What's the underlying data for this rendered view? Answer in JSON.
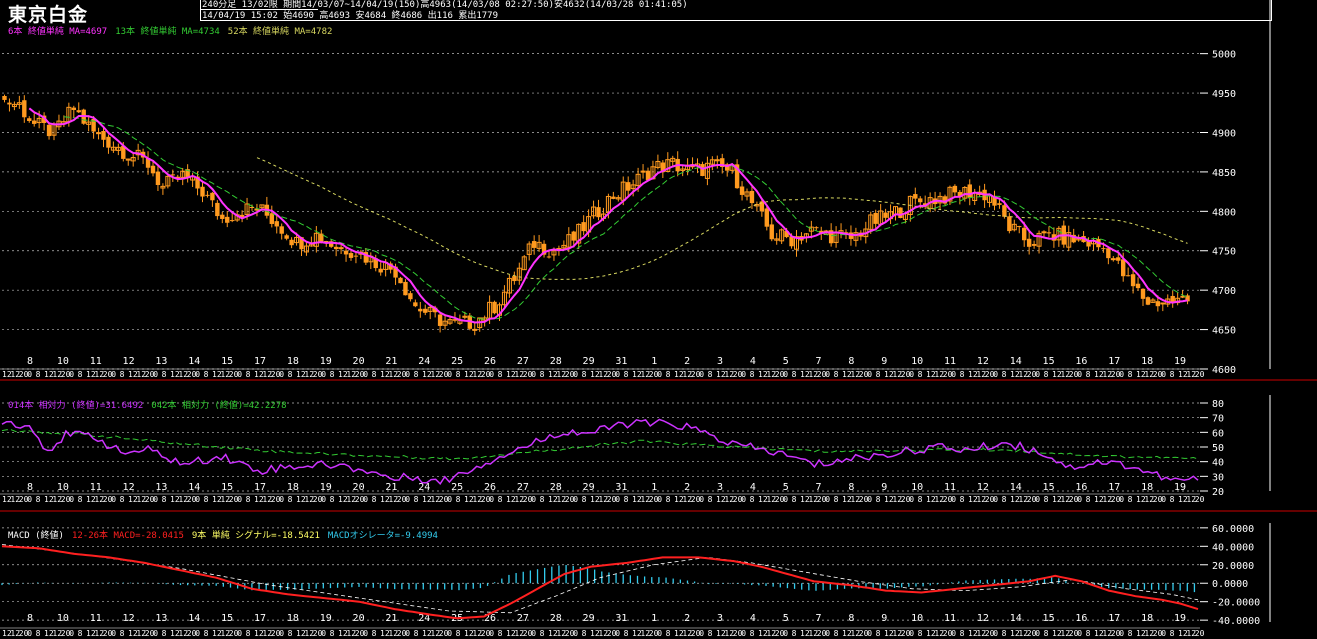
{
  "header": {
    "title": "東京白金",
    "line1": "240分足  13/02限  期間14/03/07~14/04/19(150)高4963(14/03/08 02:27:50)安4632(14/03/28 01:41:05)",
    "line2": "14/04/19 15:02 始4690 高4693 安4684 終4686 出116 累出1779"
  },
  "colors": {
    "up": "#ff9a1f",
    "ma_short": "#ff33ff",
    "ma_mid": "#33cc33",
    "ma_long": "#d8d860",
    "rsi_short": "#cc33ff",
    "rsi_long": "#33cc33",
    "macd": "#ff2020",
    "signal": "#ffffff",
    "osc": "#33ccee",
    "grid": "#bbbbbb",
    "separator": "#cc0000"
  },
  "x_axis": {
    "day_labels": [
      "8",
      "10",
      "11",
      "12",
      "13",
      "14",
      "15",
      "17",
      "18",
      "19",
      "20",
      "21",
      "24",
      "25",
      "26",
      "27",
      "28",
      "29",
      "31",
      "1",
      "2",
      "3",
      "4",
      "5",
      "7",
      "8",
      "9",
      "10",
      "11",
      "12",
      "14",
      "15",
      "16",
      "17",
      "18",
      "19"
    ],
    "hour_pattern": [
      "12",
      "12",
      "20",
      "0",
      "8"
    ]
  },
  "price_panel": {
    "legend": [
      {
        "text": "6本 終値単純 MA=4697",
        "color": "#ff33ff"
      },
      {
        "text": "13本 終値単純 MA=4734",
        "color": "#33cc33"
      },
      {
        "text": "52本 終値単純 MA=4782",
        "color": "#d8d860"
      }
    ],
    "y_ticks": [
      "5000",
      "4950",
      "4900",
      "4850",
      "4800",
      "4750",
      "4700",
      "4650",
      "4600"
    ],
    "ylim": [
      4600,
      5030
    ]
  },
  "rsi_panel": {
    "legend": [
      {
        "text": "014本 相対力 (終値)=31.6492",
        "color": "#cc33ff"
      },
      {
        "text": "042本 相対力 (終値)=42.2278",
        "color": "#33cc33"
      }
    ],
    "y_ticks": [
      "80",
      "70",
      "60",
      "50",
      "40",
      "30",
      "20"
    ],
    "ylim": [
      20,
      80
    ]
  },
  "macd_panel": {
    "legend": [
      {
        "text": "MACD (終値)",
        "color": "#ffffff"
      },
      {
        "text": "12-26本 MACD=-28.0415",
        "color": "#ff2020"
      },
      {
        "text": "9本 単純 シグナル=-18.5421",
        "color": "#ffff66"
      },
      {
        "text": "MACDオシレータ=-9.4994",
        "color": "#33ccee"
      }
    ],
    "y_ticks": [
      "60.0000",
      "40.0000",
      "20.0000",
      "0.0000",
      "-20.0000",
      "-40.0000"
    ],
    "ylim": [
      -42,
      62
    ]
  },
  "chart_data": [
    {
      "type": "candlestick",
      "title": "東京白金",
      "y_range": [
        4600,
        5030
      ],
      "close_anchors": [
        [
          0,
          4940
        ],
        [
          3,
          4935
        ],
        [
          6,
          4910
        ],
        [
          10,
          4900
        ],
        [
          14,
          4930
        ],
        [
          18,
          4900
        ],
        [
          22,
          4885
        ],
        [
          26,
          4870
        ],
        [
          29,
          4860
        ],
        [
          32,
          4830
        ],
        [
          36,
          4845
        ],
        [
          40,
          4825
        ],
        [
          44,
          4790
        ],
        [
          47,
          4800
        ],
        [
          51,
          4805
        ],
        [
          55,
          4785
        ],
        [
          59,
          4760
        ],
        [
          63,
          4770
        ],
        [
          67,
          4755
        ],
        [
          71,
          4750
        ],
        [
          75,
          4735
        ],
        [
          79,
          4725
        ],
        [
          83,
          4680
        ],
        [
          87,
          4665
        ],
        [
          91,
          4655
        ],
        [
          95,
          4660
        ],
        [
          99,
          4680
        ],
        [
          103,
          4715
        ],
        [
          107,
          4760
        ],
        [
          111,
          4750
        ],
        [
          115,
          4765
        ],
        [
          119,
          4795
        ],
        [
          123,
          4820
        ],
        [
          127,
          4835
        ],
        [
          131,
          4855
        ],
        [
          135,
          4860
        ],
        [
          139,
          4850
        ],
        [
          143,
          4858
        ],
        [
          147,
          4850
        ],
        [
          151,
          4810
        ],
        [
          155,
          4770
        ],
        [
          159,
          4765
        ],
        [
          163,
          4775
        ],
        [
          167,
          4770
        ],
        [
          171,
          4765
        ],
        [
          175,
          4785
        ],
        [
          179,
          4795
        ],
        [
          183,
          4810
        ],
        [
          187,
          4815
        ],
        [
          191,
          4820
        ],
        [
          195,
          4825
        ],
        [
          199,
          4820
        ],
        [
          203,
          4780
        ],
        [
          207,
          4760
        ],
        [
          211,
          4770
        ],
        [
          215,
          4765
        ],
        [
          219,
          4760
        ],
        [
          223,
          4750
        ],
        [
          227,
          4710
        ],
        [
          231,
          4685
        ],
        [
          235,
          4686
        ]
      ],
      "series": [
        {
          "name": "6本 終値単純 MA",
          "last": 4697
        },
        {
          "name": "13本 終値単純 MA",
          "last": 4734
        },
        {
          "name": "52本 終値単純 MA",
          "last": 4782
        }
      ]
    },
    {
      "type": "line",
      "y_range": [
        20,
        80
      ],
      "series": [
        {
          "name": "014本 相対力 (終値)",
          "last": 31.6492,
          "anchors": [
            [
              0,
              68
            ],
            [
              6,
              64
            ],
            [
              10,
              48
            ],
            [
              14,
              58
            ],
            [
              20,
              58
            ],
            [
              26,
              46
            ],
            [
              32,
              48
            ],
            [
              40,
              38
            ],
            [
              48,
              44
            ],
            [
              56,
              34
            ],
            [
              64,
              37
            ],
            [
              72,
              38
            ],
            [
              80,
              34
            ],
            [
              86,
              28
            ],
            [
              90,
              30
            ],
            [
              96,
              26
            ],
            [
              102,
              34
            ],
            [
              110,
              45
            ],
            [
              116,
              52
            ],
            [
              122,
              60
            ],
            [
              130,
              60
            ],
            [
              136,
              66
            ],
            [
              144,
              66
            ],
            [
              150,
              64
            ],
            [
              160,
              52
            ],
            [
              170,
              46
            ],
            [
              178,
              38
            ],
            [
              186,
              42
            ],
            [
              196,
              46
            ],
            [
              204,
              50
            ],
            [
              212,
              48
            ],
            [
              220,
              53
            ],
            [
              228,
              46
            ],
            [
              234,
              36
            ],
            [
              240,
              40
            ],
            [
              246,
              38
            ],
            [
              252,
              32
            ],
            [
              256,
              27
            ],
            [
              262,
              28
            ]
          ]
        },
        {
          "name": "042本 相対力 (終値)",
          "last": 42.2278,
          "anchors": [
            [
              0,
              62
            ],
            [
              20,
              58
            ],
            [
              40,
              52
            ],
            [
              60,
              47
            ],
            [
              80,
              44
            ],
            [
              100,
              42
            ],
            [
              120,
              48
            ],
            [
              140,
              54
            ],
            [
              160,
              50
            ],
            [
              180,
              47
            ],
            [
              200,
              48
            ],
            [
              220,
              48
            ],
            [
              240,
              44
            ],
            [
              262,
              42
            ]
          ]
        }
      ]
    },
    {
      "type": "line",
      "y_range": [
        -42,
        62
      ],
      "series": [
        {
          "name": "12-26本 MACD",
          "last": -28.0415,
          "anchors": [
            [
              0,
              40
            ],
            [
              8,
              38
            ],
            [
              16,
              32
            ],
            [
              24,
              28
            ],
            [
              32,
              22
            ],
            [
              40,
              14
            ],
            [
              48,
              6
            ],
            [
              56,
              -6
            ],
            [
              64,
              -12
            ],
            [
              72,
              -16
            ],
            [
              80,
              -20
            ],
            [
              88,
              -28
            ],
            [
              96,
              -34
            ],
            [
              102,
              -38
            ],
            [
              108,
              -36
            ],
            [
              114,
              -22
            ],
            [
              120,
              -6
            ],
            [
              126,
              10
            ],
            [
              132,
              18
            ],
            [
              140,
              22
            ],
            [
              148,
              28
            ],
            [
              156,
              28
            ],
            [
              164,
              24
            ],
            [
              170,
              18
            ],
            [
              176,
              10
            ],
            [
              182,
              2
            ],
            [
              190,
              -2
            ],
            [
              198,
              -8
            ],
            [
              206,
              -10
            ],
            [
              214,
              -6
            ],
            [
              222,
              -2
            ],
            [
              230,
              2
            ],
            [
              236,
              8
            ],
            [
              242,
              2
            ],
            [
              248,
              -8
            ],
            [
              254,
              -14
            ],
            [
              260,
              -18
            ],
            [
              264,
              -22
            ],
            [
              268,
              -28
            ]
          ]
        },
        {
          "name": "9本 単純 シグナル",
          "last": -18.5421,
          "anchors": [
            [
              0,
              42
            ],
            [
              20,
              30
            ],
            [
              40,
              16
            ],
            [
              60,
              -2
            ],
            [
              80,
              -16
            ],
            [
              100,
              -30
            ],
            [
              114,
              -32
            ],
            [
              124,
              -14
            ],
            [
              134,
              6
            ],
            [
              146,
              20
            ],
            [
              158,
              28
            ],
            [
              168,
              22
            ],
            [
              180,
              12
            ],
            [
              192,
              2
            ],
            [
              204,
              -6
            ],
            [
              216,
              -8
            ],
            [
              228,
              -4
            ],
            [
              240,
              4
            ],
            [
              252,
              -6
            ],
            [
              262,
              -12
            ],
            [
              268,
              -18
            ]
          ]
        },
        {
          "name": "MACDオシレータ",
          "last": -9.4994
        }
      ]
    }
  ]
}
